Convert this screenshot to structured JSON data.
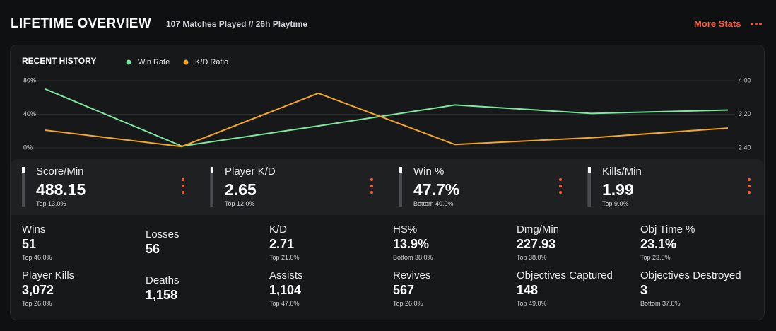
{
  "header": {
    "title": "LIFETIME OVERVIEW",
    "subtitle": "107 Matches Played // 26h Playtime",
    "link": "More Stats"
  },
  "chart_data": {
    "type": "line",
    "title": "RECENT HISTORY",
    "categories": [
      null,
      null,
      null,
      null,
      null,
      null
    ],
    "series": [
      {
        "name": "Win Rate",
        "color": "#7ee8a1",
        "values": [
          70,
          2,
          26,
          51,
          41,
          45
        ]
      },
      {
        "name": "K/D Ratio",
        "color": "#f5a623",
        "axis": "y2",
        "values": [
          2.82,
          2.43,
          3.7,
          2.48,
          2.64,
          2.87
        ]
      }
    ],
    "ylim": [
      0,
      80
    ],
    "yticks": [
      {
        "value": 0,
        "label": "0%"
      },
      {
        "value": 40,
        "label": "40%"
      },
      {
        "value": 80,
        "label": "80%"
      }
    ],
    "y2lim": [
      2.4,
      4.0
    ],
    "y2ticks": [
      {
        "value": 2.4,
        "label": "2.40"
      },
      {
        "value": 3.2,
        "label": "3.20"
      },
      {
        "value": 4.0,
        "label": "4.00"
      }
    ],
    "grid": true
  },
  "highlights": [
    {
      "label": "Score/Min",
      "value": "488.15",
      "rank": "Top 13.0%"
    },
    {
      "label": "Player K/D",
      "value": "2.65",
      "rank": "Top 12.0%"
    },
    {
      "label": "Win %",
      "value": "47.7%",
      "rank": "Bottom 40.0%"
    },
    {
      "label": "Kills/Min",
      "value": "1.99",
      "rank": "Top 9.0%"
    }
  ],
  "stats": [
    {
      "label": "Wins",
      "value": "51",
      "rank": "Top 46.0%"
    },
    {
      "label": "Losses",
      "value": "56"
    },
    {
      "label": "K/D",
      "value": "2.71",
      "rank": "Top 21.0%"
    },
    {
      "label": "HS%",
      "value": "13.9%",
      "rank": "Bottom 38.0%"
    },
    {
      "label": "Dmg/Min",
      "value": "227.93",
      "rank": "Top 38.0%"
    },
    {
      "label": "Obj Time %",
      "value": "23.1%",
      "rank": "Top 23.0%"
    },
    {
      "label": "Player Kills",
      "value": "3,072",
      "rank": "Top 26.0%"
    },
    {
      "label": "Deaths",
      "value": "1,158"
    },
    {
      "label": "Assists",
      "value": "1,104",
      "rank": "Top 47.0%"
    },
    {
      "label": "Revives",
      "value": "567",
      "rank": "Top 26.0%"
    },
    {
      "label": "Objectives Captured",
      "value": "148",
      "rank": "Top 49.0%"
    },
    {
      "label": "Objectives Destroyed",
      "value": "3",
      "rank": "Bottom 37.0%"
    }
  ]
}
